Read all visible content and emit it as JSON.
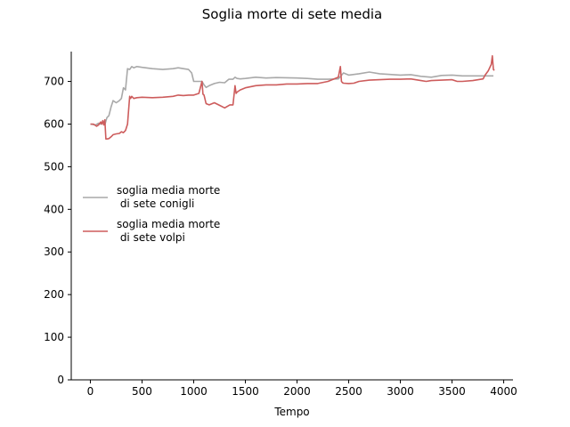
{
  "chart_data": {
    "type": "line",
    "title": "Soglia morte di sete media",
    "xlabel": "Tempo",
    "ylabel": "",
    "xlim": [
      -185,
      4090
    ],
    "ylim": [
      0,
      770
    ],
    "xticks": [
      0,
      500,
      1000,
      1500,
      2000,
      2500,
      3000,
      3500,
      4000
    ],
    "yticks": [
      0,
      100,
      200,
      300,
      400,
      500,
      600,
      700
    ],
    "grid": false,
    "legend_position": "center-left",
    "series": [
      {
        "name": "soglia media morte\n di sete conigli",
        "color": "#a9a9a9",
        "x": [
          0,
          50,
          80,
          100,
          120,
          140,
          160,
          180,
          200,
          220,
          250,
          280,
          300,
          320,
          340,
          360,
          380,
          400,
          420,
          450,
          500,
          600,
          700,
          800,
          850,
          900,
          950,
          980,
          1000,
          1020,
          1050,
          1080,
          1100,
          1120,
          1150,
          1200,
          1250,
          1300,
          1340,
          1380,
          1400,
          1420,
          1450,
          1500,
          1600,
          1700,
          1800,
          2000,
          2100,
          2200,
          2300,
          2400,
          2450,
          2500,
          2600,
          2700,
          2800,
          3000,
          3100,
          3200,
          3300,
          3400,
          3500,
          3600,
          3700,
          3800,
          3900
        ],
        "y": [
          600,
          598,
          602,
          600,
          605,
          598,
          615,
          620,
          640,
          655,
          650,
          655,
          660,
          685,
          680,
          730,
          728,
          735,
          732,
          735,
          733,
          730,
          728,
          730,
          732,
          730,
          728,
          720,
          700,
          700,
          700,
          700,
          692,
          686,
          690,
          695,
          698,
          697,
          705,
          705,
          710,
          707,
          706,
          707,
          710,
          708,
          709,
          708,
          707,
          705,
          705,
          706,
          720,
          715,
          718,
          722,
          718,
          715,
          716,
          712,
          710,
          714,
          715,
          713,
          713,
          713,
          713
        ]
      },
      {
        "name": "soglia media morte\n di sete volpi",
        "color": "#cd5c5c",
        "x": [
          0,
          30,
          60,
          80,
          100,
          110,
          120,
          130,
          140,
          150,
          160,
          180,
          200,
          220,
          250,
          280,
          300,
          320,
          340,
          360,
          380,
          390,
          400,
          420,
          450,
          500,
          600,
          700,
          800,
          850,
          900,
          950,
          1000,
          1050,
          1080,
          1090,
          1100,
          1120,
          1150,
          1200,
          1250,
          1300,
          1350,
          1380,
          1400,
          1410,
          1420,
          1450,
          1500,
          1600,
          1700,
          1800,
          1900,
          2000,
          2100,
          2200,
          2300,
          2350,
          2400,
          2420,
          2430,
          2440,
          2450,
          2500,
          2550,
          2600,
          2700,
          2800,
          2900,
          3000,
          3100,
          3200,
          3250,
          3300,
          3400,
          3500,
          3550,
          3600,
          3700,
          3800,
          3820,
          3850,
          3880,
          3890,
          3900,
          3910
        ],
        "y": [
          600,
          600,
          595,
          598,
          605,
          600,
          608,
          598,
          610,
          565,
          565,
          566,
          570,
          575,
          577,
          578,
          582,
          580,
          585,
          600,
          665,
          660,
          665,
          660,
          662,
          663,
          662,
          663,
          665,
          668,
          667,
          668,
          668,
          672,
          700,
          670,
          668,
          648,
          645,
          650,
          644,
          638,
          645,
          645,
          690,
          672,
          675,
          680,
          685,
          690,
          692,
          692,
          694,
          694,
          695,
          695,
          700,
          705,
          710,
          735,
          700,
          697,
          696,
          695,
          696,
          700,
          703,
          704,
          705,
          705,
          706,
          702,
          700,
          702,
          703,
          704,
          700,
          700,
          702,
          706,
          715,
          725,
          740,
          760,
          728,
          726
        ]
      }
    ]
  }
}
